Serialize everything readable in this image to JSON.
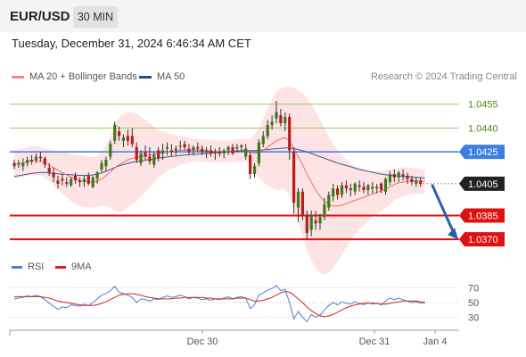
{
  "header": {
    "symbol": "EUR/USD",
    "timeframe": "30 MIN"
  },
  "datetime": "Tuesday, December 31, 2024 6:46:34 AM CET",
  "legend": [
    {
      "label": "MA 20 + Bollinger Bands",
      "color": "#f08a8a"
    },
    {
      "label": "MA 50",
      "color": "#1f4e8c"
    }
  ],
  "credit": "Research © 2024 Trading Central",
  "rsi_legend": [
    {
      "label": "RSI",
      "color": "#4a7fd4"
    },
    {
      "label": "9MA",
      "color": "#d42020"
    }
  ],
  "colors": {
    "resistance": "#9ccc65",
    "resistance_text": "#4a8a10",
    "pivot": "#3d7fe0",
    "support": "#dd1111",
    "current_bg": "#222222",
    "arrow": "#2a5ea8",
    "candle_up": "#3a7a1a",
    "candle_down": "#b81d1d",
    "band_fill": "#fde3e3",
    "ma20": "#e87070",
    "ma50": "#3a5a95",
    "rsi_line": "#4a7fd4",
    "rsi_ma": "#d42020"
  },
  "chart_data": {
    "type": "candlestick",
    "price_axis": {
      "min": 1.036,
      "max": 1.047
    },
    "x_ticks": [
      "Dec 30",
      "Dec 31",
      "Jan 4"
    ],
    "levels": [
      {
        "label": "1.0455",
        "value": 1.0455,
        "kind": "resistance"
      },
      {
        "label": "1.0440",
        "value": 1.044,
        "kind": "resistance"
      },
      {
        "label": "1.0425",
        "value": 1.0425,
        "kind": "pivot"
      },
      {
        "label": "1.0405",
        "value": 1.0405,
        "kind": "current"
      },
      {
        "label": "1.0385",
        "value": 1.0385,
        "kind": "support"
      },
      {
        "label": "1.0370",
        "value": 1.037,
        "kind": "support"
      }
    ],
    "current_price": 1.0405,
    "rsi_axis": {
      "min": 15,
      "max": 85,
      "ticks": [
        "70",
        "50",
        "30"
      ]
    },
    "candles": [
      [
        1.0418,
        1.042,
        1.0414,
        1.0416
      ],
      [
        1.0417,
        1.042,
        1.0415,
        1.0418
      ],
      [
        1.0416,
        1.0421,
        1.0413,
        1.0418
      ],
      [
        1.0418,
        1.0422,
        1.0416,
        1.042
      ],
      [
        1.042,
        1.0423,
        1.0417,
        1.0419
      ],
      [
        1.042,
        1.0424,
        1.0418,
        1.0422
      ],
      [
        1.0422,
        1.0425,
        1.0419,
        1.0421
      ],
      [
        1.0421,
        1.0422,
        1.0415,
        1.0417
      ],
      [
        1.0415,
        1.0418,
        1.041,
        1.0412
      ],
      [
        1.0412,
        1.0415,
        1.0406,
        1.0409
      ],
      [
        1.0407,
        1.041,
        1.0402,
        1.0405
      ],
      [
        1.0408,
        1.0411,
        1.0404,
        1.0407
      ],
      [
        1.0406,
        1.0409,
        1.0403,
        1.0405
      ],
      [
        1.0404,
        1.0409,
        1.0403,
        1.0408
      ],
      [
        1.041,
        1.0412,
        1.0405,
        1.0407
      ],
      [
        1.0407,
        1.0409,
        1.0403,
        1.0406
      ],
      [
        1.0406,
        1.041,
        1.0403,
        1.0408
      ],
      [
        1.041,
        1.0412,
        1.0404,
        1.0405
      ],
      [
        1.0403,
        1.041,
        1.0402,
        1.0409
      ],
      [
        1.0408,
        1.0413,
        1.0405,
        1.0412
      ],
      [
        1.0414,
        1.042,
        1.0412,
        1.0418
      ],
      [
        1.0416,
        1.0422,
        1.0413,
        1.042
      ],
      [
        1.0422,
        1.0432,
        1.042,
        1.043
      ],
      [
        1.0432,
        1.0444,
        1.043,
        1.0442
      ],
      [
        1.0438,
        1.0441,
        1.0432,
        1.0435
      ],
      [
        1.0432,
        1.0436,
        1.0428,
        1.0434
      ],
      [
        1.0435,
        1.0439,
        1.0429,
        1.0432
      ],
      [
        1.0435,
        1.044,
        1.0428,
        1.043
      ],
      [
        1.0428,
        1.0431,
        1.0418,
        1.042
      ],
      [
        1.0418,
        1.0426,
        1.0416,
        1.0424
      ],
      [
        1.0425,
        1.0429,
        1.042,
        1.0422
      ],
      [
        1.0422,
        1.0428,
        1.0417,
        1.0419
      ],
      [
        1.0417,
        1.0425,
        1.0415,
        1.0423
      ],
      [
        1.0426,
        1.0428,
        1.0419,
        1.0421
      ],
      [
        1.0424,
        1.043,
        1.042,
        1.0426
      ],
      [
        1.0427,
        1.0431,
        1.0423,
        1.0428
      ],
      [
        1.0426,
        1.043,
        1.0422,
        1.0425
      ],
      [
        1.0426,
        1.0429,
        1.0423,
        1.0427
      ],
      [
        1.0429,
        1.0432,
        1.0426,
        1.0429
      ],
      [
        1.043,
        1.0432,
        1.0426,
        1.0428
      ],
      [
        1.0427,
        1.043,
        1.0423,
        1.0425
      ],
      [
        1.0426,
        1.0429,
        1.0423,
        1.0428
      ],
      [
        1.0428,
        1.0431,
        1.0425,
        1.0427
      ],
      [
        1.0427,
        1.0429,
        1.0423,
        1.0425
      ],
      [
        1.0425,
        1.0428,
        1.0421,
        1.0426
      ],
      [
        1.0426,
        1.0429,
        1.0422,
        1.0424
      ],
      [
        1.0424,
        1.0427,
        1.042,
        1.0425
      ],
      [
        1.0425,
        1.0428,
        1.0422,
        1.0424
      ],
      [
        1.0424,
        1.0427,
        1.0421,
        1.0426
      ],
      [
        1.0426,
        1.0429,
        1.0423,
        1.0428
      ],
      [
        1.0428,
        1.043,
        1.0423,
        1.0424
      ],
      [
        1.0427,
        1.043,
        1.0425,
        1.0428
      ],
      [
        1.0428,
        1.043,
        1.0426,
        1.0429
      ],
      [
        1.0422,
        1.043,
        1.042,
        1.0427
      ],
      [
        1.0423,
        1.0425,
        1.0408,
        1.0411
      ],
      [
        1.0411,
        1.0418,
        1.0409,
        1.0416
      ],
      [
        1.0418,
        1.0433,
        1.0416,
        1.0431
      ],
      [
        1.043,
        1.0438,
        1.0428,
        1.0435
      ],
      [
        1.0435,
        1.0445,
        1.0433,
        1.0442
      ],
      [
        1.0442,
        1.0448,
        1.0439,
        1.0444
      ],
      [
        1.0446,
        1.0457,
        1.0443,
        1.045
      ],
      [
        1.0448,
        1.0452,
        1.0441,
        1.0443
      ],
      [
        1.0443,
        1.045,
        1.0438,
        1.0447
      ],
      [
        1.0447,
        1.0449,
        1.042,
        1.0426
      ],
      [
        1.0425,
        1.0428,
        1.0386,
        1.0393
      ],
      [
        1.039,
        1.0402,
        1.0381,
        1.04
      ],
      [
        1.04,
        1.0402,
        1.0382,
        1.0385
      ],
      [
        1.0385,
        1.0388,
        1.037,
        1.0374
      ],
      [
        1.0376,
        1.0388,
        1.0372,
        1.0385
      ],
      [
        1.0382,
        1.0388,
        1.0376,
        1.038
      ],
      [
        1.038,
        1.0386,
        1.0376,
        1.0384
      ],
      [
        1.0384,
        1.0396,
        1.0382,
        1.0392
      ],
      [
        1.039,
        1.04,
        1.0388,
        1.0398
      ],
      [
        1.0397,
        1.0405,
        1.0394,
        1.0402
      ],
      [
        1.0402,
        1.0404,
        1.0395,
        1.0398
      ],
      [
        1.0398,
        1.0406,
        1.0396,
        1.0404
      ],
      [
        1.0404,
        1.0407,
        1.0399,
        1.0402
      ],
      [
        1.0402,
        1.0405,
        1.0397,
        1.0401
      ],
      [
        1.04,
        1.0406,
        1.0398,
        1.0405
      ],
      [
        1.0404,
        1.0407,
        1.04,
        1.0403
      ],
      [
        1.0403,
        1.0406,
        1.0399,
        1.0401
      ],
      [
        1.0401,
        1.0405,
        1.0398,
        1.0404
      ],
      [
        1.0403,
        1.0406,
        1.0399,
        1.0402
      ],
      [
        1.0402,
        1.0405,
        1.0399,
        1.0403
      ],
      [
        1.0405,
        1.0406,
        1.0399,
        1.0401
      ],
      [
        1.04,
        1.0409,
        1.0398,
        1.0408
      ],
      [
        1.0406,
        1.0413,
        1.0404,
        1.0411
      ],
      [
        1.0411,
        1.0414,
        1.0406,
        1.0409
      ],
      [
        1.0409,
        1.0413,
        1.0406,
        1.0412
      ],
      [
        1.0411,
        1.0414,
        1.0407,
        1.041
      ],
      [
        1.041,
        1.0412,
        1.0405,
        1.0408
      ],
      [
        1.0408,
        1.041,
        1.0404,
        1.0406
      ],
      [
        1.0405,
        1.0409,
        1.0403,
        1.0407
      ],
      [
        1.0407,
        1.0409,
        1.0403,
        1.0405
      ]
    ],
    "ma20": [
      1.0417,
      1.04175,
      1.0418,
      1.0419,
      1.04195,
      1.04195,
      1.0419,
      1.0418,
      1.04165,
      1.0415,
      1.04135,
      1.0412,
      1.04105,
      1.0409,
      1.0408,
      1.0407,
      1.04065,
      1.0406,
      1.0406,
      1.04065,
      1.0408,
      1.041,
      1.04125,
      1.0415,
      1.0417,
      1.04185,
      1.042,
      1.0421,
      1.04215,
      1.0422,
      1.04225,
      1.0423,
      1.04235,
      1.0424,
      1.04245,
      1.0425,
      1.04252,
      1.04255,
      1.04258,
      1.0426,
      1.04262,
      1.04262,
      1.04262,
      1.0426,
      1.04258,
      1.04256,
      1.04254,
      1.04252,
      1.04252,
      1.04254,
      1.04256,
      1.04258,
      1.0426,
      1.04262,
      1.0425,
      1.0424,
      1.04245,
      1.0426,
      1.0428,
      1.043,
      1.0432,
      1.0433,
      1.0434,
      1.0432,
      1.0427,
      1.0422,
      1.0417,
      1.0411,
      1.0406,
      1.0401,
      1.0397,
      1.0394,
      1.0392,
      1.0391,
      1.0391,
      1.03915,
      1.03925,
      1.03935,
      1.03945,
      1.03955,
      1.03965,
      1.03975,
      1.03985,
      1.03995,
      1.04005,
      1.04015,
      1.0403,
      1.04045,
      1.04055,
      1.0406,
      1.04065,
      1.04068,
      1.04068,
      1.04066,
      1.04064
    ],
    "bb_upper": [
      1.0426,
      1.04265,
      1.0427,
      1.0428,
      1.04285,
      1.04285,
      1.0428,
      1.0427,
      1.04265,
      1.0426,
      1.04255,
      1.0425,
      1.04245,
      1.0424,
      1.04235,
      1.0423,
      1.04225,
      1.0422,
      1.0422,
      1.04225,
      1.0425,
      1.0429,
      1.0435,
      1.0442,
      1.0447,
      1.0449,
      1.045,
      1.045,
      1.0449,
      1.0447,
      1.0445,
      1.0443,
      1.0441,
      1.0439,
      1.0438,
      1.0437,
      1.0436,
      1.04355,
      1.0435,
      1.04345,
      1.0434,
      1.04335,
      1.04332,
      1.0433,
      1.04328,
      1.04326,
      1.04324,
      1.04322,
      1.0432,
      1.04322,
      1.04325,
      1.04328,
      1.0433,
      1.04332,
      1.0433,
      1.0436,
      1.044,
      1.0446,
      1.0452,
      1.0458,
      1.0463,
      1.0465,
      1.0466,
      1.0466,
      1.0465,
      1.0464,
      1.0462,
      1.0459,
      1.0455,
      1.045,
      1.0445,
      1.044,
      1.0435,
      1.043,
      1.0426,
      1.0423,
      1.042,
      1.0418,
      1.0416,
      1.0415,
      1.0414,
      1.04135,
      1.0413,
      1.0413,
      1.0413,
      1.04135,
      1.0414,
      1.04145,
      1.0415,
      1.04152,
      1.04152,
      1.0415,
      1.04148,
      1.04144,
      1.0414
    ],
    "bb_lower": [
      1.0408,
      1.04085,
      1.0409,
      1.041,
      1.04105,
      1.04105,
      1.041,
      1.0409,
      1.04065,
      1.0404,
      1.04015,
      1.0399,
      1.03965,
      1.0394,
      1.03925,
      1.0391,
      1.03905,
      1.039,
      1.039,
      1.03905,
      1.0391,
      1.0391,
      1.039,
      1.0388,
      1.0387,
      1.0388,
      1.039,
      1.0392,
      1.0394,
      1.0397,
      1.04,
      1.0403,
      1.0406,
      1.0409,
      1.0411,
      1.0413,
      1.04145,
      1.04155,
      1.04166,
      1.04175,
      1.04184,
      1.04189,
      1.04192,
      1.0419,
      1.04188,
      1.04186,
      1.04184,
      1.04182,
      1.04184,
      1.04186,
      1.04187,
      1.04188,
      1.0419,
      1.04192,
      1.0417,
      1.0412,
      1.0409,
      1.0406,
      1.0404,
      1.0402,
      1.0401,
      1.0401,
      1.0402,
      1.0398,
      1.0389,
      1.038,
      1.0372,
      1.0363,
      1.0357,
      1.0352,
      1.0349,
      1.0348,
      1.0349,
      1.0352,
      1.0356,
      1.036,
      1.0365,
      1.0369,
      1.0373,
      1.0376,
      1.0379,
      1.03815,
      1.0384,
      1.0386,
      1.0388,
      1.03895,
      1.0392,
      1.03945,
      1.0396,
      1.03968,
      1.03978,
      1.03986,
      1.03988,
      1.03988,
      1.03988
    ],
    "ma50": [
      1.04095,
      1.041,
      1.04105,
      1.0411,
      1.04115,
      1.04118,
      1.0412,
      1.0412,
      1.04118,
      1.04115,
      1.04112,
      1.0411,
      1.04108,
      1.04106,
      1.04104,
      1.04103,
      1.04102,
      1.04103,
      1.04105,
      1.0411,
      1.04118,
      1.04128,
      1.0414,
      1.04152,
      1.04162,
      1.0417,
      1.04178,
      1.04185,
      1.0419,
      1.04194,
      1.04198,
      1.04202,
      1.04206,
      1.0421,
      1.04214,
      1.04218,
      1.04221,
      1.04224,
      1.04227,
      1.0423,
      1.04232,
      1.04234,
      1.04236,
      1.04238,
      1.0424,
      1.04242,
      1.04244,
      1.04246,
      1.04248,
      1.0425,
      1.04252,
      1.04254,
      1.04256,
      1.04258,
      1.04258,
      1.04258,
      1.0426,
      1.04262,
      1.04265,
      1.04268,
      1.0427,
      1.04272,
      1.04275,
      1.04275,
      1.0427,
      1.04265,
      1.04258,
      1.0425,
      1.0424,
      1.0423,
      1.0422,
      1.0421,
      1.042,
      1.0419,
      1.0418,
      1.04172,
      1.04164,
      1.04156,
      1.04148,
      1.0414,
      1.04134,
      1.04128,
      1.04122,
      1.04116,
      1.0411,
      1.04106,
      1.04102,
      1.041,
      1.04098,
      1.04096,
      1.04094,
      1.04092,
      1.0409,
      1.04088,
      1.04086
    ],
    "rsi": [
      55,
      56,
      57,
      59,
      58,
      60,
      58,
      54,
      49,
      45,
      41,
      44,
      43,
      47,
      46,
      45,
      48,
      46,
      50,
      55,
      60,
      62,
      66,
      72,
      64,
      62,
      60,
      57,
      50,
      55,
      54,
      52,
      55,
      54,
      57,
      59,
      57,
      58,
      60,
      58,
      55,
      57,
      56,
      54,
      55,
      53,
      55,
      54,
      56,
      58,
      55,
      57,
      58,
      56,
      42,
      47,
      60,
      63,
      67,
      69,
      73,
      66,
      68,
      50,
      28,
      38,
      30,
      24,
      34,
      30,
      33,
      40,
      46,
      50,
      47,
      51,
      49,
      48,
      51,
      49,
      47,
      50,
      48,
      49,
      47,
      52,
      56,
      54,
      56,
      54,
      52,
      50,
      51,
      49,
      49
    ],
    "rsi_ma": [
      58,
      58,
      58,
      58,
      58,
      58,
      58,
      57,
      56,
      54,
      52,
      51,
      50,
      49,
      48,
      47,
      46,
      46,
      46,
      47,
      49,
      51,
      54,
      57,
      60,
      61,
      62,
      62,
      61,
      60,
      58,
      57,
      56,
      55,
      55,
      55,
      55,
      56,
      56,
      57,
      57,
      57,
      57,
      57,
      56,
      56,
      55,
      55,
      55,
      55,
      55,
      56,
      56,
      56,
      54,
      52,
      52,
      53,
      55,
      57,
      60,
      63,
      65,
      64,
      60,
      55,
      50,
      44,
      39,
      35,
      32,
      31,
      32,
      34,
      37,
      40,
      43,
      45,
      47,
      48,
      49,
      49,
      49,
      49,
      48,
      48,
      49,
      50,
      51,
      52,
      52,
      52,
      52,
      51,
      51
    ]
  }
}
